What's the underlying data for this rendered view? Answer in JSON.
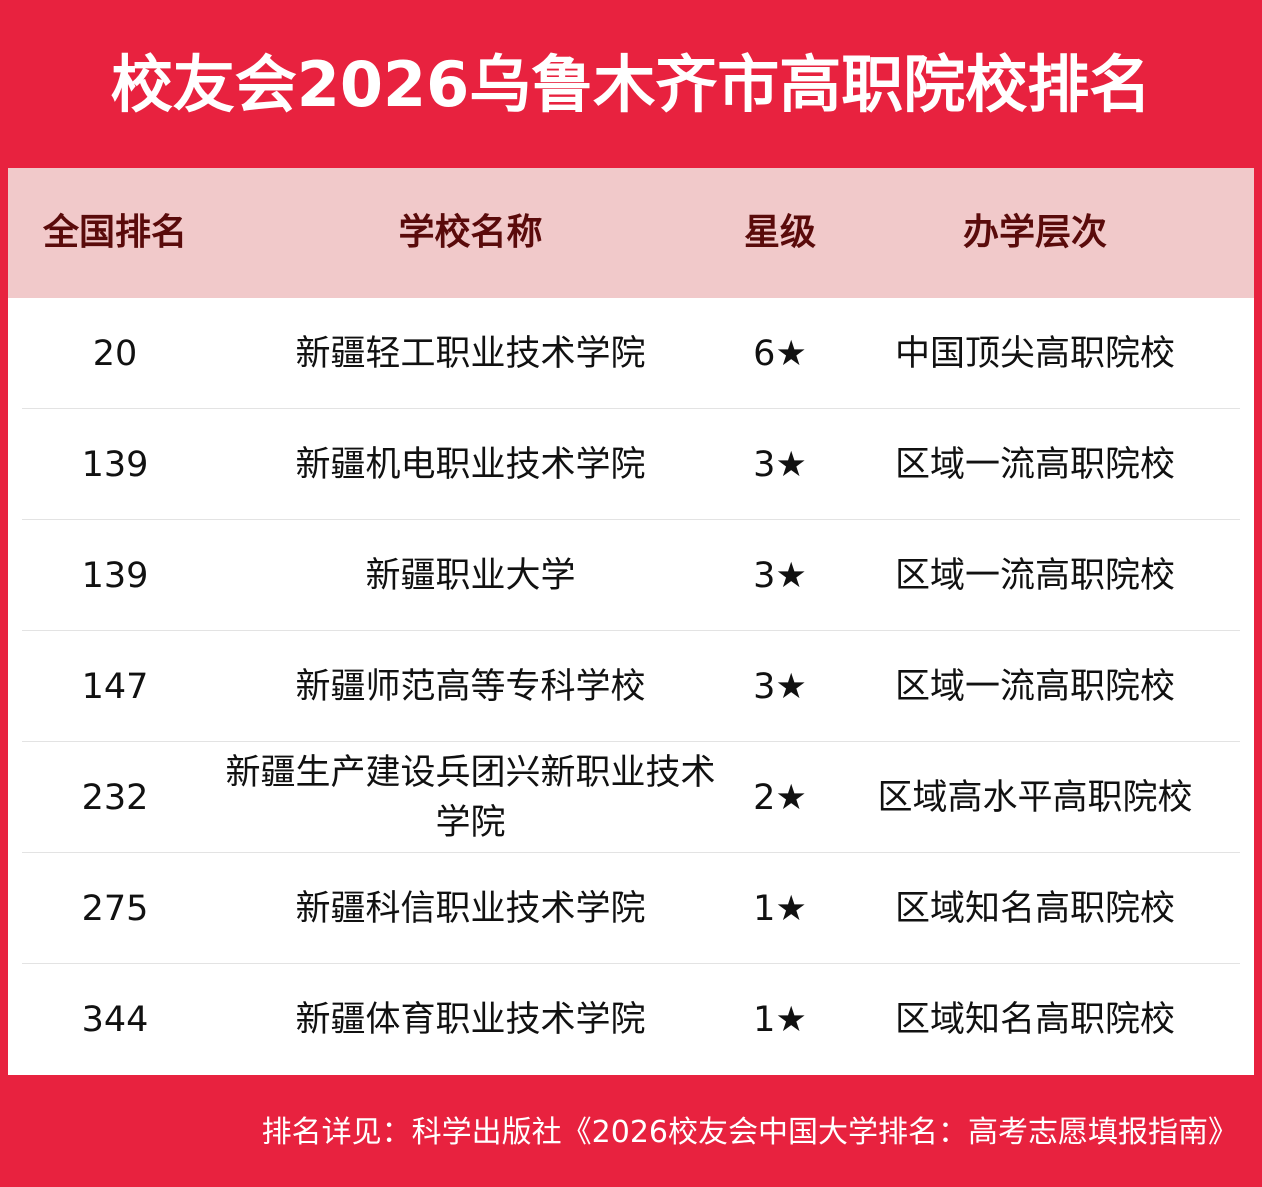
{
  "header": {
    "title": "校友会2026乌鲁木齐市高职院校排名"
  },
  "table": {
    "columns": [
      "全国排名",
      "学校名称",
      "星级",
      "办学层次"
    ],
    "rows": [
      [
        "20",
        "新疆轻工职业技术学院",
        "6★",
        "中国顶尖高职院校"
      ],
      [
        "139",
        "新疆机电职业技术学院",
        "3★",
        "区域一流高职院校"
      ],
      [
        "139",
        "新疆职业大学",
        "3★",
        "区域一流高职院校"
      ],
      [
        "147",
        "新疆师范高等专科学校",
        "3★",
        "区域一流高职院校"
      ],
      [
        "232",
        "新疆生产建设兵团兴新职业技术学院",
        "2★",
        "区域高水平高职院校"
      ],
      [
        "275",
        "新疆科信职业技术学院",
        "1★",
        "区域知名高职院校"
      ],
      [
        "344",
        "新疆体育职业技术学院",
        "1★",
        "区域知名高职院校"
      ]
    ]
  },
  "footer": {
    "note": "排名详见：科学出版社《2026校友会中国大学排名：高考志愿填报指南》"
  }
}
